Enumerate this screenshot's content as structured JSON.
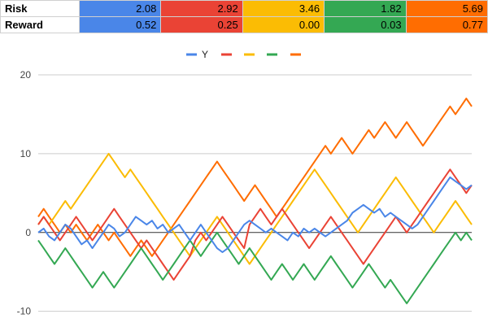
{
  "table": {
    "rows": [
      {
        "label": "Risk",
        "values": [
          "2.08",
          "2.92",
          "3.46",
          "1.82",
          "5.69"
        ]
      },
      {
        "label": "Reward",
        "values": [
          "0.52",
          "0.25",
          "0.00",
          "0.03",
          "0.77"
        ]
      }
    ],
    "column_colors": [
      "#4a86e8",
      "#ea4335",
      "#fbbc04",
      "#34a853",
      "#ff6d01"
    ]
  },
  "chart_data": {
    "type": "line",
    "ylim": [
      -12,
      20
    ],
    "yticks": [
      -10,
      0,
      10,
      20
    ],
    "grid": true,
    "legend": "top-center",
    "series": [
      {
        "name": "Y",
        "color": "#4a86e8",
        "values": [
          0,
          0.5,
          -0.5,
          -1,
          0,
          1,
          0.5,
          -0.5,
          -1.5,
          -1,
          -2,
          -1,
          0,
          1,
          0.5,
          -0.5,
          0,
          1,
          2,
          1.5,
          1,
          1.5,
          0.5,
          1,
          0,
          0.5,
          1,
          0,
          -1,
          0,
          1,
          0,
          -1,
          -2,
          -2.5,
          -2,
          -1,
          0,
          1,
          1.5,
          1,
          0.5,
          0,
          0.5,
          0,
          -0.5,
          -1,
          0,
          -0.5,
          0.5,
          0,
          0.5,
          0,
          -0.5,
          0,
          0.5,
          1,
          1.5,
          2.5,
          3,
          3.5,
          3,
          2.5,
          3,
          2,
          2.5,
          2,
          1.5,
          1,
          0.5,
          1,
          2,
          3,
          4,
          5,
          6,
          7,
          6.5,
          6,
          5.5,
          6
        ]
      },
      {
        "color": "#ea4335",
        "values": [
          1,
          2,
          1,
          0,
          -1,
          0,
          1,
          2,
          1,
          0,
          -1,
          0,
          1,
          2,
          3,
          2,
          1,
          0,
          -1,
          -2,
          -1,
          -2,
          -3,
          -4,
          -5,
          -6,
          -5,
          -4,
          -3,
          -1,
          0,
          -1,
          0,
          1,
          2,
          1,
          0,
          -1,
          -2,
          1,
          2,
          3,
          2,
          1,
          2,
          3,
          2,
          1,
          0,
          -1,
          -2,
          -1,
          0,
          1,
          2,
          1,
          0,
          -1,
          -2,
          -3,
          -4,
          -3,
          -2,
          -1,
          0,
          1,
          2,
          1,
          0,
          1,
          2,
          3,
          4,
          5,
          6,
          7,
          8,
          7,
          6,
          5,
          6
        ]
      },
      {
        "color": "#fbbc04",
        "values": [
          1,
          2,
          1,
          2,
          3,
          4,
          3,
          4,
          5,
          6,
          7,
          8,
          9,
          10,
          9,
          8,
          7,
          8,
          7,
          6,
          5,
          4,
          3,
          2,
          1,
          0,
          -1,
          -2,
          -3,
          -2,
          -1,
          0,
          1,
          2,
          1,
          0,
          -1,
          -2,
          -3,
          -4,
          -3,
          -2,
          -1,
          0,
          1,
          2,
          3,
          4,
          5,
          6,
          7,
          8,
          7,
          6,
          5,
          4,
          3,
          2,
          1,
          0,
          1,
          2,
          3,
          4,
          5,
          6,
          7,
          6,
          5,
          4,
          3,
          2,
          1,
          0,
          1,
          2,
          3,
          4,
          3,
          2,
          1
        ]
      },
      {
        "color": "#34a853",
        "values": [
          -1,
          -2,
          -3,
          -4,
          -3,
          -2,
          -3,
          -4,
          -5,
          -6,
          -7,
          -6,
          -5,
          -6,
          -7,
          -6,
          -5,
          -4,
          -3,
          -2,
          -3,
          -4,
          -5,
          -6,
          -5,
          -4,
          -3,
          -2,
          -1,
          -2,
          -3,
          -2,
          -1,
          0,
          -1,
          -2,
          -3,
          -4,
          -3,
          -2,
          -3,
          -4,
          -5,
          -6,
          -5,
          -4,
          -5,
          -6,
          -5,
          -4,
          -5,
          -6,
          -5,
          -4,
          -3,
          -4,
          -5,
          -6,
          -7,
          -6,
          -5,
          -4,
          -5,
          -6,
          -7,
          -6,
          -7,
          -8,
          -9,
          -8,
          -7,
          -6,
          -5,
          -4,
          -3,
          -2,
          -1,
          0,
          -1,
          0,
          -1
        ]
      },
      {
        "color": "#ff6d01",
        "values": [
          2,
          3,
          2,
          1,
          0,
          1,
          0,
          1,
          0,
          -1,
          0,
          1,
          0,
          -1,
          0,
          -1,
          -2,
          -3,
          -2,
          -1,
          -2,
          -3,
          -2,
          -1,
          0,
          1,
          2,
          3,
          4,
          5,
          6,
          7,
          8,
          9,
          8,
          7,
          6,
          5,
          4,
          5,
          6,
          5,
          4,
          3,
          2,
          3,
          4,
          5,
          6,
          7,
          8,
          9,
          10,
          11,
          10,
          11,
          12,
          11,
          10,
          11,
          12,
          13,
          12,
          13,
          14,
          13,
          12,
          13,
          14,
          13,
          12,
          11,
          12,
          13,
          14,
          15,
          16,
          15,
          16,
          17,
          16
        ]
      }
    ]
  }
}
